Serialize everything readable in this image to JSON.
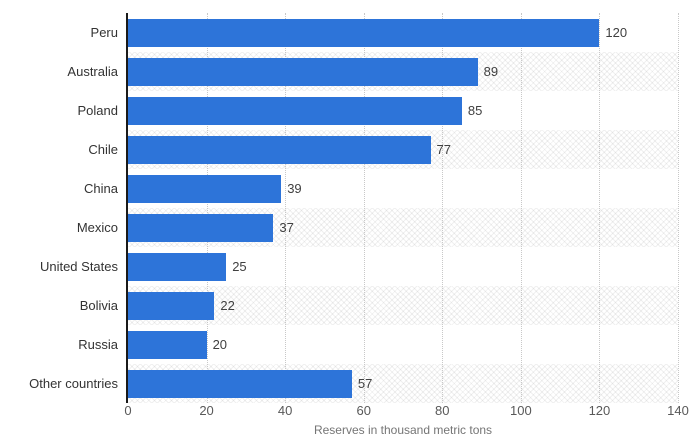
{
  "chart_data": {
    "type": "bar",
    "orientation": "horizontal",
    "categories": [
      "Peru",
      "Australia",
      "Poland",
      "Chile",
      "China",
      "Mexico",
      "United States",
      "Bolivia",
      "Russia",
      "Other countries"
    ],
    "values": [
      120,
      89,
      85,
      77,
      39,
      37,
      25,
      22,
      20,
      57
    ],
    "title": "",
    "xlabel": "Reserves in thousand metric tons",
    "ylabel": "",
    "xlim": [
      0,
      140
    ],
    "xticks": [
      0,
      20,
      40,
      60,
      80,
      100,
      120,
      140
    ],
    "grid": "vertical-dotted",
    "legend": "none",
    "bar_color": "#2d74d9",
    "alternating_row_hatch": true
  },
  "colors": {
    "bar": "#2d74d9",
    "category_label": "#333333",
    "value_label": "#404040",
    "tick_label": "#595959",
    "axis_caption": "#757575",
    "axis_line": "#1a1a1a",
    "gridline": "#c8c8c8",
    "background": "#ffffff"
  }
}
